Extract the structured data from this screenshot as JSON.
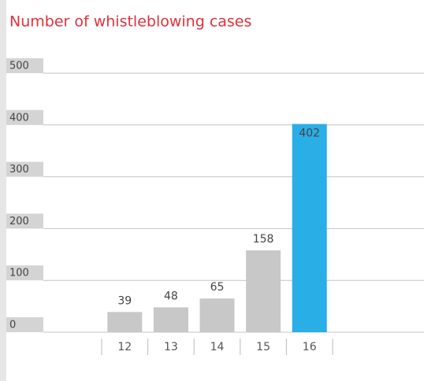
{
  "chart_data": {
    "type": "bar",
    "title": "Number of whistleblowing cases",
    "categories": [
      "12",
      "13",
      "14",
      "15",
      "16"
    ],
    "values": [
      39,
      48,
      65,
      158,
      402
    ],
    "colors": [
      "#c8c8c8",
      "#c8c8c8",
      "#c8c8c8",
      "#c8c8c8",
      "#2aaee6"
    ],
    "ylim": [
      0,
      500
    ],
    "yticks": [
      0,
      100,
      200,
      300,
      400,
      500
    ],
    "grid": true
  }
}
